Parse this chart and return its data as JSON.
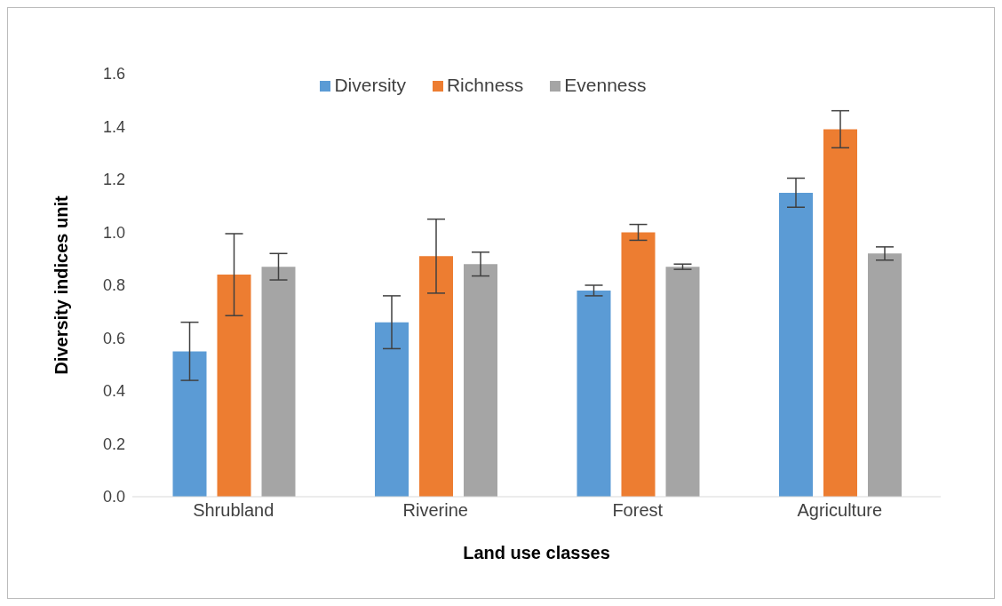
{
  "chart_data": {
    "type": "bar",
    "xlabel": "Land use classes",
    "ylabel": "Diversity indices unit",
    "categories": [
      "Shrubland",
      "Riverine",
      "Forest",
      "Agriculture"
    ],
    "series": [
      {
        "name": "Diversity",
        "color": "#5b9bd5",
        "values": [
          0.55,
          0.66,
          0.78,
          1.15
        ],
        "errors": [
          0.11,
          0.1,
          0.02,
          0.055
        ]
      },
      {
        "name": "Richness",
        "color": "#ed7d31",
        "values": [
          0.84,
          0.91,
          1.0,
          1.39
        ],
        "errors": [
          0.155,
          0.14,
          0.03,
          0.07
        ]
      },
      {
        "name": "Evenness",
        "color": "#a5a5a5",
        "values": [
          0.87,
          0.88,
          0.87,
          0.92
        ],
        "errors": [
          0.05,
          0.045,
          0.01,
          0.025
        ]
      }
    ],
    "ylim": [
      0,
      1.6
    ],
    "yticks": [
      {
        "value": 0,
        "label": "0.0"
      },
      {
        "value": 0.2,
        "label": "0.2"
      },
      {
        "value": 0.4,
        "label": "0.4"
      },
      {
        "value": 0.6,
        "label": "0.6"
      },
      {
        "value": 0.8,
        "label": "0.8"
      },
      {
        "value": 1.0,
        "label": "1.0"
      },
      {
        "value": 1.2,
        "label": "1.2"
      },
      {
        "value": 1.4,
        "label": "1.4"
      },
      {
        "value": 1.6,
        "label": "1.6"
      }
    ],
    "grid": false,
    "legend": "top"
  }
}
